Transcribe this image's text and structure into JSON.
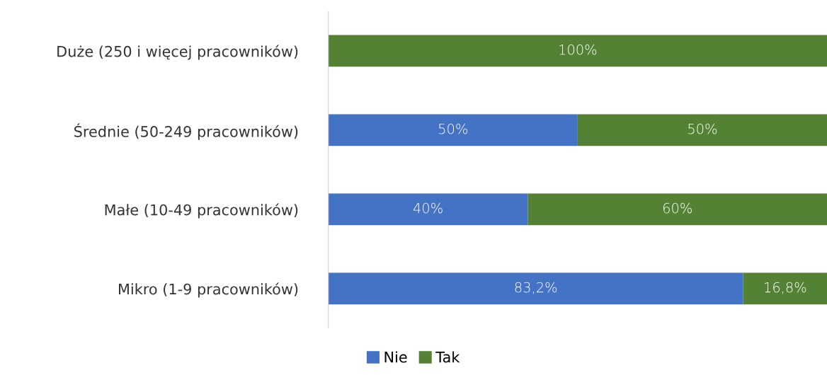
{
  "chart_data": {
    "type": "bar",
    "orientation": "horizontal",
    "stacked": true,
    "categories": [
      "Duże (250 i więcej pracowników)",
      "Średnie (50-249 pracowników)",
      "Małe (10-49 pracowników)",
      "Mikro (1-9 pracowników)"
    ],
    "series": [
      {
        "name": "Nie",
        "color": "#4472c4",
        "values": [
          0,
          50,
          40,
          83.2
        ],
        "value_labels": [
          null,
          "50%",
          "40%",
          "83,2%"
        ]
      },
      {
        "name": "Tak",
        "color": "#548235",
        "values": [
          100,
          50,
          60,
          16.8
        ],
        "value_labels": [
          "100%",
          "50%",
          "60%",
          "16,8%"
        ]
      }
    ],
    "legend": "bottom"
  }
}
